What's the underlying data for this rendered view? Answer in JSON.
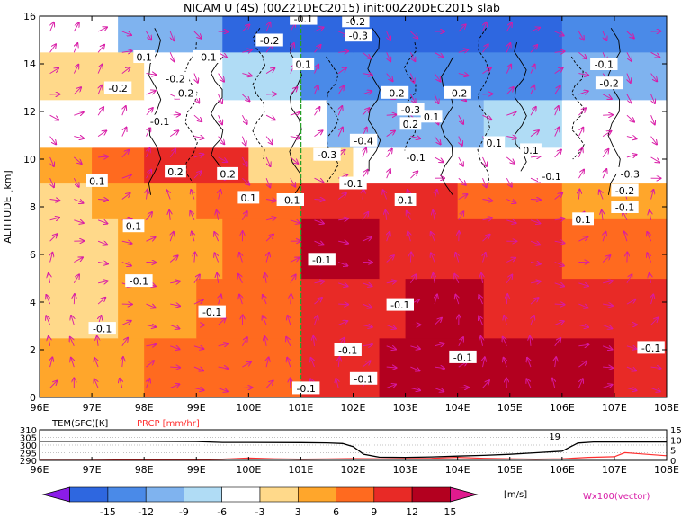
{
  "title": "NICAM U (4S) (00Z21DEC2015) init:00Z20DEC2015 slab",
  "chart_data": [
    {
      "type": "heatmap",
      "panel": "cross-section",
      "xlabel": "",
      "ylabel": "ALTITUDE [km]",
      "xlim": [
        96,
        108
      ],
      "ylim": [
        0,
        16
      ],
      "x_ticks": [
        "96E",
        "97E",
        "98E",
        "99E",
        "100E",
        "101E",
        "102E",
        "103E",
        "104E",
        "105E",
        "106E",
        "107E",
        "108E"
      ],
      "y_ticks": [
        "0",
        "2",
        "4",
        "6",
        "8",
        "10",
        "12",
        "14",
        "16"
      ],
      "layers": [
        {
          "z_min": 0.0,
          "z_max": 2.5,
          "fields": [
            [
              "96E",
              "98E",
              6
            ],
            [
              "98E",
              "101E",
              9
            ],
            [
              "101E",
              "102.5E",
              12
            ],
            [
              "102.5E",
              "107E",
              15
            ],
            [
              "107E",
              "108E",
              12
            ]
          ]
        },
        {
          "z_min": 2.5,
          "z_max": 5.0,
          "fields": [
            [
              "96E",
              "97.5E",
              3
            ],
            [
              "97.5E",
              "99E",
              6
            ],
            [
              "99E",
              "101E",
              9
            ],
            [
              "101E",
              "103E",
              12
            ],
            [
              "103E",
              "104.5E",
              15
            ],
            [
              "104.5E",
              "108E",
              12
            ]
          ]
        },
        {
          "z_min": 5.0,
          "z_max": 7.5,
          "fields": [
            [
              "96E",
              "97.5E",
              3
            ],
            [
              "97.5E",
              "99.5E",
              6
            ],
            [
              "99.5E",
              "101E",
              9
            ],
            [
              "101E",
              "102.5E",
              15
            ],
            [
              "102.5E",
              "106E",
              12
            ],
            [
              "106E",
              "108E",
              9
            ]
          ]
        },
        {
          "z_min": 7.5,
          "z_max": 9.0,
          "fields": [
            [
              "96E",
              "97E",
              3
            ],
            [
              "97E",
              "99E",
              6
            ],
            [
              "99E",
              "101E",
              9
            ],
            [
              "101E",
              "104E",
              12
            ],
            [
              "104E",
              "106E",
              9
            ],
            [
              "106E",
              "108E",
              6
            ]
          ]
        },
        {
          "z_min": 9.0,
          "z_max": 10.5,
          "fields": [
            [
              "96E",
              "97E",
              6
            ],
            [
              "97E",
              "98E",
              9
            ],
            [
              "98E",
              "100E",
              12
            ],
            [
              "100E",
              "102E",
              3
            ],
            [
              "102E",
              "104E",
              -3
            ],
            [
              "104E",
              "108E",
              0
            ]
          ]
        },
        {
          "z_min": 10.5,
          "z_max": 12.5,
          "fields": [
            [
              "96E",
              "97E",
              0
            ],
            [
              "97E",
              "100E",
              0
            ],
            [
              "100E",
              "101.5E",
              -3
            ],
            [
              "101.5E",
              "104.5E",
              -9
            ],
            [
              "104.5E",
              "106E",
              -6
            ],
            [
              "106E",
              "108E",
              -3
            ]
          ]
        },
        {
          "z_min": 12.5,
          "z_max": 14.5,
          "fields": [
            [
              "96E",
              "98E",
              3
            ],
            [
              "98E",
              "99.5E",
              -3
            ],
            [
              "99.5E",
              "101E",
              -6
            ],
            [
              "101E",
              "104E",
              -12
            ],
            [
              "104E",
              "106E",
              -12
            ],
            [
              "106E",
              "108E",
              -9
            ]
          ]
        },
        {
          "z_min": 14.5,
          "z_max": 16.0,
          "fields": [
            [
              "96E",
              "97.5E",
              0
            ],
            [
              "97.5E",
              "99.5E",
              -9
            ],
            [
              "99.5E",
              "102E",
              -15
            ],
            [
              "102E",
              "106E",
              -15
            ],
            [
              "106E",
              "108E",
              -12
            ]
          ]
        }
      ],
      "contour_labels": [
        {
          "text": "-0.1",
          "lon": 101.05,
          "alt": 15.9
        },
        {
          "text": "-0.2",
          "lon": 102.05,
          "alt": 15.8
        },
        {
          "text": "-0.2",
          "lon": 100.4,
          "alt": 15.0
        },
        {
          "text": "-0.3",
          "lon": 102.1,
          "alt": 15.2
        },
        {
          "text": "-0.1",
          "lon": 99.2,
          "alt": 14.3
        },
        {
          "text": "0.1",
          "lon": 98.0,
          "alt": 14.3
        },
        {
          "text": "0.1",
          "lon": 101.05,
          "alt": 14.0
        },
        {
          "text": "-0.1",
          "lon": 106.8,
          "alt": 14.0
        },
        {
          "text": "-0.2",
          "lon": 98.6,
          "alt": 13.4
        },
        {
          "text": "-0.2",
          "lon": 97.5,
          "alt": 13.0
        },
        {
          "text": "0.2",
          "lon": 98.8,
          "alt": 12.8
        },
        {
          "text": "-0.2",
          "lon": 102.8,
          "alt": 12.8
        },
        {
          "text": "-0.2",
          "lon": 104.0,
          "alt": 12.8
        },
        {
          "text": "-0.2",
          "lon": 106.9,
          "alt": 13.2
        },
        {
          "text": "-0.3",
          "lon": 103.1,
          "alt": 12.1
        },
        {
          "text": "0.1",
          "lon": 103.5,
          "alt": 11.8
        },
        {
          "text": "0.2",
          "lon": 103.1,
          "alt": 11.5
        },
        {
          "text": "-0.1",
          "lon": 98.3,
          "alt": 11.6
        },
        {
          "text": "-0.4",
          "lon": 102.2,
          "alt": 10.8
        },
        {
          "text": "0.1",
          "lon": 104.7,
          "alt": 10.7
        },
        {
          "text": "0.1",
          "lon": 105.4,
          "alt": 10.4
        },
        {
          "text": "-0.3",
          "lon": 101.5,
          "alt": 10.2
        },
        {
          "text": "-0.1",
          "lon": 103.2,
          "alt": 10.1
        },
        {
          "text": "0.2",
          "lon": 98.6,
          "alt": 9.5
        },
        {
          "text": "0.2",
          "lon": 99.6,
          "alt": 9.4
        },
        {
          "text": "-0.1",
          "lon": 105.8,
          "alt": 9.3
        },
        {
          "text": "-0.3",
          "lon": 107.3,
          "alt": 9.4
        },
        {
          "text": "0.1",
          "lon": 97.1,
          "alt": 9.1
        },
        {
          "text": "-0.1",
          "lon": 102.0,
          "alt": 9.0
        },
        {
          "text": "-0.2",
          "lon": 107.2,
          "alt": 8.7
        },
        {
          "text": "0.1",
          "lon": 100.0,
          "alt": 8.4
        },
        {
          "text": "-0.1",
          "lon": 100.8,
          "alt": 8.3
        },
        {
          "text": "0.1",
          "lon": 103.0,
          "alt": 8.3
        },
        {
          "text": "-0.1",
          "lon": 107.2,
          "alt": 8.0
        },
        {
          "text": "0.1",
          "lon": 97.8,
          "alt": 7.2
        },
        {
          "text": "0.1",
          "lon": 106.4,
          "alt": 7.5
        },
        {
          "text": "-0.1",
          "lon": 101.4,
          "alt": 5.8
        },
        {
          "text": "-0.1",
          "lon": 97.9,
          "alt": 4.9
        },
        {
          "text": "-0.1",
          "lon": 102.9,
          "alt": 3.9
        },
        {
          "text": "-0.1",
          "lon": 99.3,
          "alt": 3.6
        },
        {
          "text": "-0.1",
          "lon": 97.2,
          "alt": 2.9
        },
        {
          "text": "-0.1",
          "lon": 101.9,
          "alt": 2.0
        },
        {
          "text": "-0.1",
          "lon": 104.1,
          "alt": 1.7
        },
        {
          "text": "-0.1",
          "lon": 107.7,
          "alt": 2.1
        },
        {
          "text": "-0.1",
          "lon": 102.2,
          "alt": 0.8
        },
        {
          "text": "-0.1",
          "lon": 101.1,
          "alt": 0.4
        }
      ],
      "marker_line_lon": 101.0,
      "legend_text": "Wx100(vector)",
      "units": "[m/s]"
    },
    {
      "type": "line",
      "panel": "surface",
      "x_ticks": [
        "96E",
        "97E",
        "98E",
        "99E",
        "100E",
        "101E",
        "102E",
        "103E",
        "104E",
        "105E",
        "106E",
        "107E",
        "108E"
      ],
      "y_left_ticks": [
        "290",
        "295",
        "300",
        "305",
        "310"
      ],
      "y_right_ticks": [
        "0",
        "5",
        "10",
        "15"
      ],
      "ylim_left": [
        290,
        310
      ],
      "ylim_right": [
        0,
        15
      ],
      "series": [
        {
          "name": "TEM(SFC)[K]",
          "color": "#000000",
          "axis": "left",
          "x": [
            96,
            97,
            98,
            99,
            99.5,
            100,
            101,
            101.5,
            101.8,
            102,
            102.2,
            102.5,
            103,
            103.5,
            104,
            104.5,
            105,
            105.5,
            106,
            106.3,
            106.6,
            107,
            107.5,
            108
          ],
          "y": [
            302.5,
            302.5,
            302.5,
            302.3,
            301.7,
            301.7,
            301.6,
            301.4,
            301,
            299,
            294,
            292.1,
            292,
            292.3,
            292.8,
            293.3,
            294,
            295,
            296,
            301.3,
            302,
            302,
            302,
            302
          ]
        },
        {
          "name": "PRCP [mm/hr]",
          "color": "#ff3030",
          "axis": "right",
          "x": [
            96,
            97,
            98,
            99,
            99.5,
            100,
            100.5,
            101,
            101.5,
            102,
            102.5,
            103,
            103.5,
            104,
            104.5,
            105,
            105.5,
            106,
            106.5,
            107,
            107.2,
            107.5,
            108
          ],
          "y": [
            0.1,
            0.1,
            0.3,
            0.4,
            0.6,
            1.2,
            0.8,
            0.6,
            0.7,
            0.9,
            0.8,
            0.9,
            1.0,
            1.5,
            1.0,
            0.8,
            0.6,
            0.8,
            1.5,
            1.8,
            3.8,
            3.2,
            2.3
          ]
        }
      ],
      "annotation": "19"
    },
    {
      "type": "colorbar",
      "panel": "colorbar",
      "tick_labels": [
        "-15",
        "-12",
        "-9",
        "-6",
        "-3",
        "3",
        "6",
        "9",
        "12",
        "15"
      ],
      "colors": [
        "#8b1ce8",
        "#2e67e0",
        "#4a8ae8",
        "#7fb3ef",
        "#b0dcf5",
        "#ffffff",
        "#ffd98a",
        "#ffa62b",
        "#ff6a1f",
        "#e82a26",
        "#b3001f",
        "#e01a8e"
      ],
      "units": "[m/s]"
    }
  ]
}
